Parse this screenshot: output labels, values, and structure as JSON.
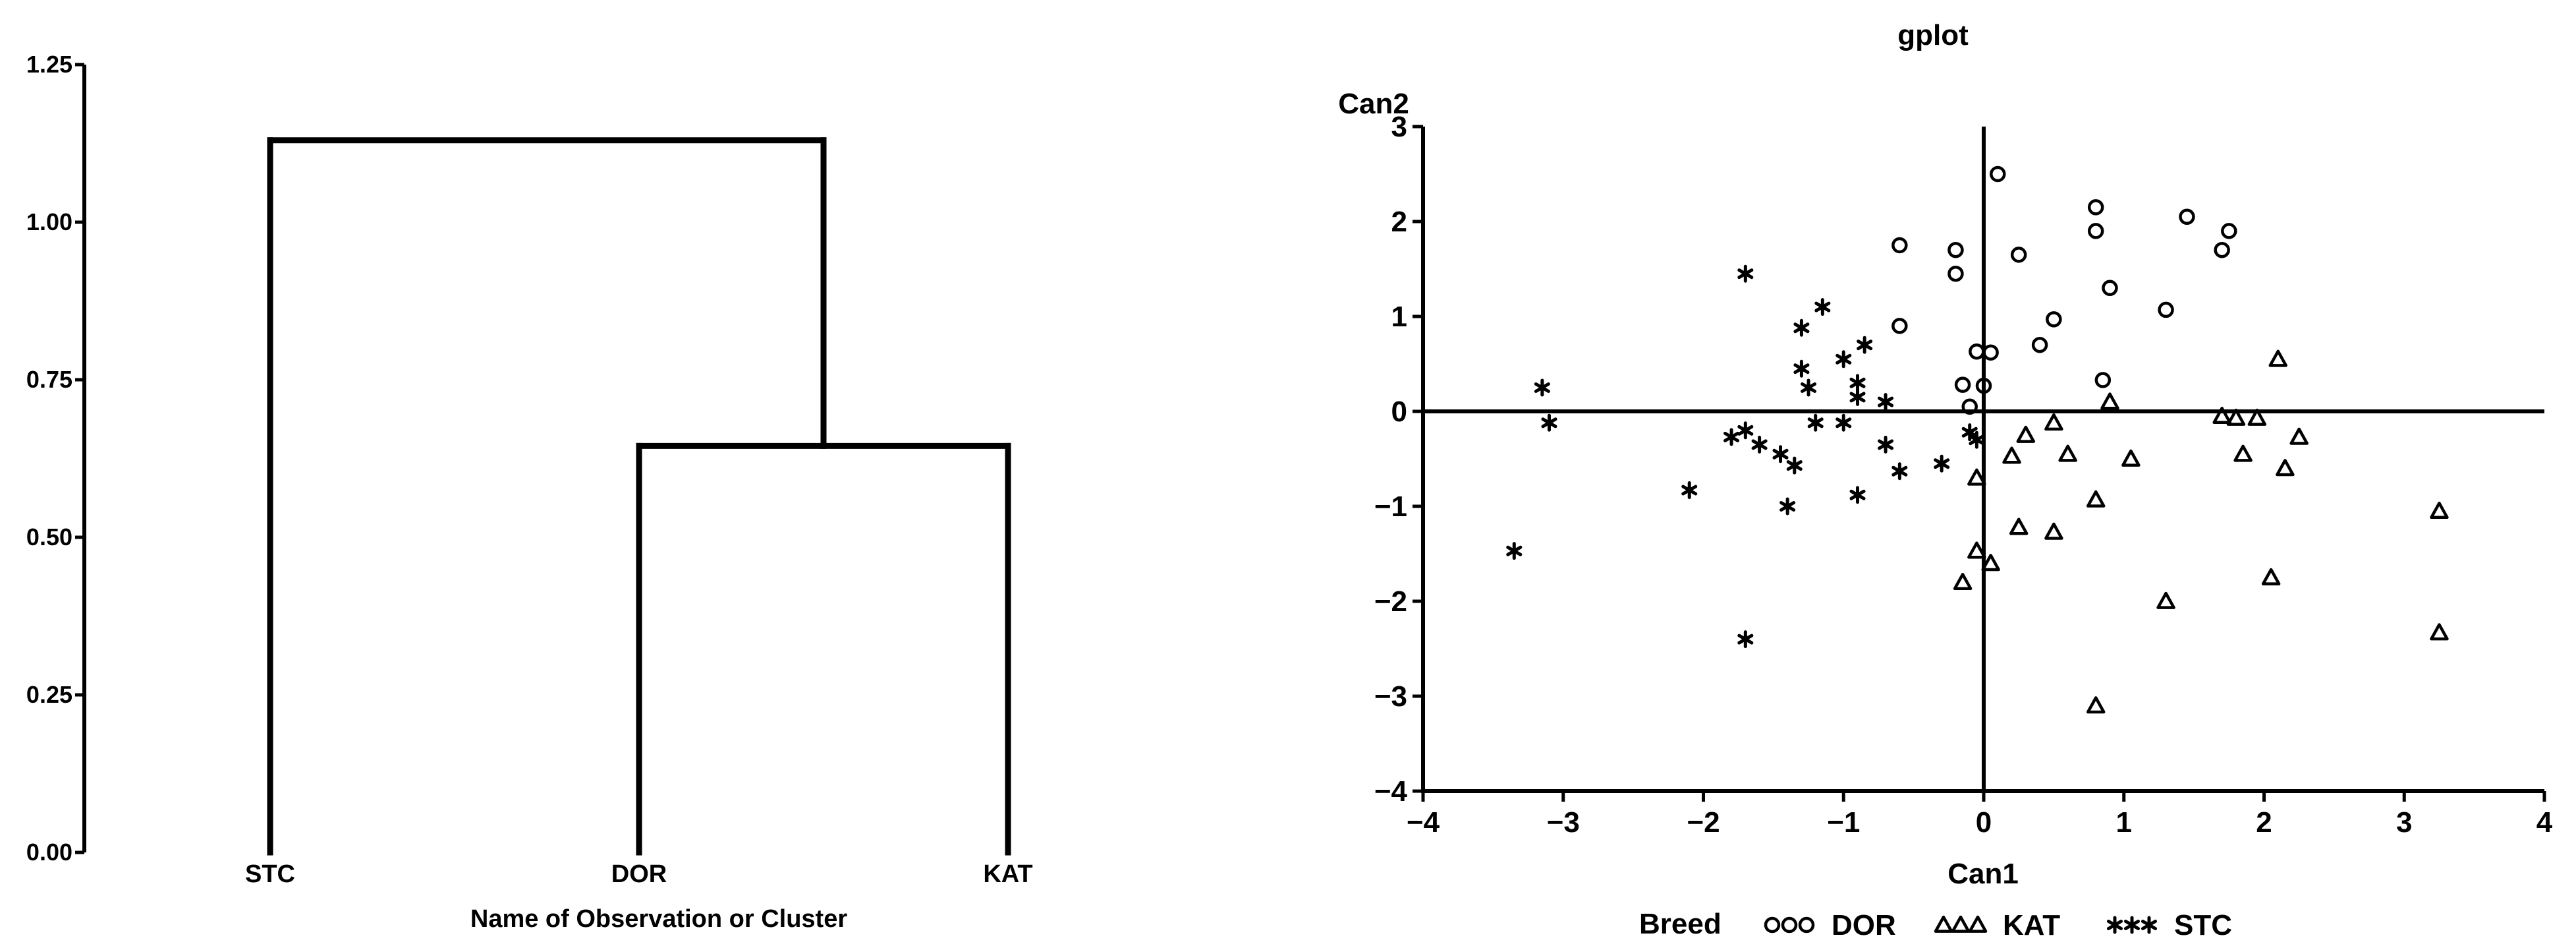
{
  "chart_data": [
    {
      "type": "dendrogram",
      "xlabel": "Name of Observation or Cluster",
      "ylabel": "",
      "ylim": [
        0,
        1.25
      ],
      "y_ticks": [
        "0.00",
        "0.25",
        "0.50",
        "0.75",
        "1.00",
        "1.25"
      ],
      "leaves": [
        "STC",
        "DOR",
        "KAT"
      ],
      "merges": [
        {
          "clusters": [
            "DOR",
            "KAT"
          ],
          "height": 0.645
        },
        {
          "clusters": [
            "STC",
            "DOR+KAT"
          ],
          "height": 1.13
        }
      ]
    },
    {
      "type": "scatter",
      "title": "gplot",
      "xlabel": "Can1",
      "ylabel": "Can2",
      "xlim": [
        -4,
        4
      ],
      "ylim": [
        -4,
        3
      ],
      "x_ticks": [
        "-4",
        "-3",
        "-2",
        "-1",
        "0",
        "1",
        "2",
        "3",
        "4"
      ],
      "y_ticks": [
        "-4",
        "-3",
        "-2",
        "-1",
        "0",
        "1",
        "2",
        "3"
      ],
      "reference_lines": {
        "x": 0,
        "y": 0
      },
      "legend": {
        "title": "Breed",
        "position": "bottom"
      },
      "series": [
        {
          "name": "DOR",
          "marker": "circle",
          "points": [
            [
              0.1,
              2.5
            ],
            [
              0.8,
              2.15
            ],
            [
              1.45,
              2.05
            ],
            [
              0.8,
              1.9
            ],
            [
              1.75,
              1.9
            ],
            [
              -0.6,
              1.75
            ],
            [
              -0.2,
              1.7
            ],
            [
              1.7,
              1.7
            ],
            [
              0.25,
              1.65
            ],
            [
              -0.2,
              1.45
            ],
            [
              0.9,
              1.3
            ],
            [
              1.3,
              1.07
            ],
            [
              0.5,
              0.97
            ],
            [
              -0.6,
              0.9
            ],
            [
              0.4,
              0.7
            ],
            [
              -0.05,
              0.63
            ],
            [
              0.05,
              0.62
            ],
            [
              0.85,
              0.33
            ],
            [
              -0.15,
              0.28
            ],
            [
              0.0,
              0.27
            ],
            [
              -0.1,
              0.05
            ]
          ]
        },
        {
          "name": "KAT",
          "marker": "triangle",
          "points": [
            [
              2.1,
              0.55
            ],
            [
              0.9,
              0.1
            ],
            [
              1.7,
              -0.05
            ],
            [
              1.8,
              -0.07
            ],
            [
              1.95,
              -0.07
            ],
            [
              0.5,
              -0.12
            ],
            [
              0.3,
              -0.25
            ],
            [
              2.25,
              -0.27
            ],
            [
              0.2,
              -0.47
            ],
            [
              0.6,
              -0.45
            ],
            [
              1.85,
              -0.45
            ],
            [
              1.05,
              -0.5
            ],
            [
              2.15,
              -0.6
            ],
            [
              -0.05,
              -0.7
            ],
            [
              0.8,
              -0.93
            ],
            [
              0.25,
              -1.22
            ],
            [
              0.5,
              -1.27
            ],
            [
              -0.05,
              -1.47
            ],
            [
              0.05,
              -1.6
            ],
            [
              -0.15,
              -1.8
            ],
            [
              2.05,
              -1.75
            ],
            [
              1.3,
              -2.0
            ],
            [
              3.25,
              -1.05
            ],
            [
              3.25,
              -2.33
            ],
            [
              0.8,
              -3.1
            ]
          ]
        },
        {
          "name": "STC",
          "marker": "star",
          "points": [
            [
              -1.7,
              1.45
            ],
            [
              -1.15,
              1.1
            ],
            [
              -1.3,
              0.88
            ],
            [
              -0.85,
              0.7
            ],
            [
              -1.0,
              0.55
            ],
            [
              -1.3,
              0.45
            ],
            [
              -0.9,
              0.3
            ],
            [
              -1.25,
              0.25
            ],
            [
              -0.9,
              0.15
            ],
            [
              -0.7,
              0.1
            ],
            [
              -3.15,
              0.25
            ],
            [
              -3.1,
              -0.12
            ],
            [
              -1.2,
              -0.12
            ],
            [
              -1.0,
              -0.12
            ],
            [
              -1.7,
              -0.2
            ],
            [
              -1.8,
              -0.27
            ],
            [
              -0.1,
              -0.22
            ],
            [
              -0.05,
              -0.3
            ],
            [
              -0.7,
              -0.35
            ],
            [
              -1.6,
              -0.35
            ],
            [
              -1.45,
              -0.45
            ],
            [
              -1.35,
              -0.57
            ],
            [
              -0.3,
              -0.55
            ],
            [
              -0.6,
              -0.63
            ],
            [
              -2.1,
              -0.83
            ],
            [
              -0.9,
              -0.88
            ],
            [
              -1.4,
              -1.0
            ],
            [
              -3.35,
              -1.47
            ],
            [
              -1.7,
              -2.4
            ]
          ]
        }
      ]
    }
  ]
}
